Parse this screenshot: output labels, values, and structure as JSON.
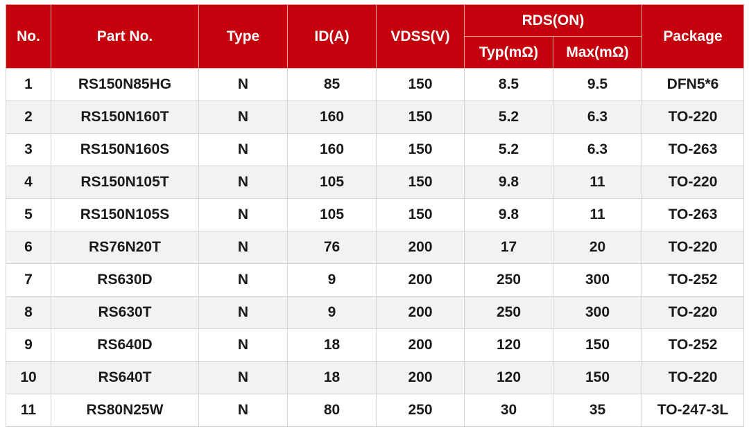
{
  "table": {
    "header": [
      "No.",
      "Part No.",
      "Type",
      "ID(A)",
      "VDSS(V)",
      "RDS(ON)",
      "Package"
    ],
    "subheader": [
      "Typ(mΩ)",
      "Max(mΩ)"
    ],
    "rows": [
      [
        1,
        "RS150N85HG",
        "N",
        85,
        150,
        8.5,
        9.5,
        "DFN5*6"
      ],
      [
        2,
        "RS150N160T",
        "N",
        160,
        150,
        5.2,
        6.3,
        "TO-220"
      ],
      [
        3,
        "RS150N160S",
        "N",
        160,
        150,
        5.2,
        6.3,
        "TO-263"
      ],
      [
        4,
        "RS150N105T",
        "N",
        105,
        150,
        9.8,
        11,
        "TO-220"
      ],
      [
        5,
        "RS150N105S",
        "N",
        105,
        150,
        9.8,
        11,
        "TO-263"
      ],
      [
        6,
        "RS76N20T",
        "N",
        76,
        200,
        17,
        20,
        "TO-220"
      ],
      [
        7,
        "RS630D",
        "N",
        9,
        200,
        250,
        300,
        "TO-252"
      ],
      [
        8,
        "RS630T",
        "N",
        9,
        200,
        250,
        300,
        "TO-220"
      ],
      [
        9,
        "RS640D",
        "N",
        18,
        200,
        120,
        150,
        "TO-252"
      ],
      [
        10,
        "RS640T",
        "N",
        18,
        200,
        120,
        150,
        "TO-220"
      ],
      [
        11,
        "RS80N25W",
        "N",
        80,
        250,
        30,
        35,
        "TO-247-3L"
      ]
    ]
  }
}
